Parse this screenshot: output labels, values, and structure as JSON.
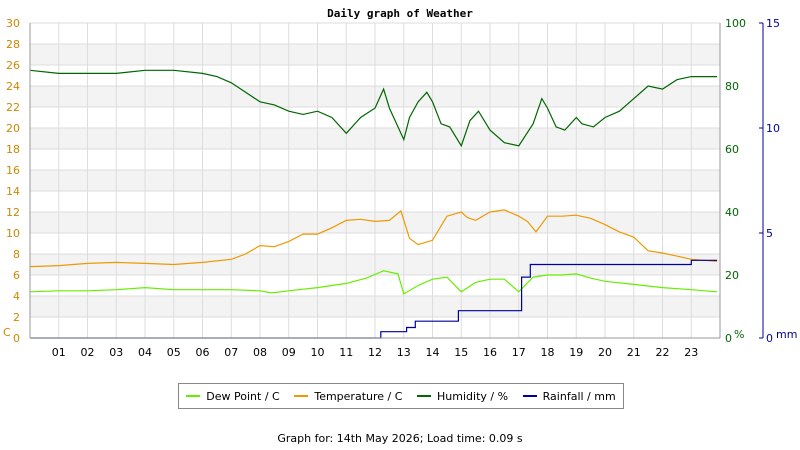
{
  "chart_data": {
    "type": "line",
    "title": "Daily graph of Weather",
    "x_tick_labels": [
      "01",
      "02",
      "03",
      "04",
      "05",
      "06",
      "07",
      "08",
      "09",
      "10",
      "11",
      "12",
      "13",
      "14",
      "15",
      "16",
      "17",
      "18",
      "19",
      "20",
      "21",
      "22",
      "23"
    ],
    "x_range": [
      0,
      24
    ],
    "left_axis": {
      "unit": "C",
      "range": [
        0,
        30
      ],
      "ticks": [
        0,
        2,
        4,
        6,
        8,
        10,
        12,
        14,
        16,
        18,
        20,
        22,
        24,
        26,
        28,
        30
      ]
    },
    "humidity_axis": {
      "unit": "%",
      "range": [
        0,
        100
      ],
      "ticks": [
        0,
        20,
        40,
        60,
        80,
        100
      ]
    },
    "rain_axis": {
      "unit": "mm",
      "range": [
        0,
        15
      ],
      "ticks": [
        0,
        5,
        10,
        15
      ]
    },
    "grid": true,
    "legend_placement": "bottom",
    "series": [
      {
        "name": "Dew Point / C",
        "axis": "left",
        "color": "#66ee00",
        "points": [
          [
            0,
            4.4
          ],
          [
            1,
            4.5
          ],
          [
            2,
            4.5
          ],
          [
            3,
            4.6
          ],
          [
            4,
            4.8
          ],
          [
            5,
            4.6
          ],
          [
            6,
            4.6
          ],
          [
            7,
            4.6
          ],
          [
            8,
            4.5
          ],
          [
            8.4,
            4.3
          ],
          [
            9,
            4.5
          ],
          [
            10,
            4.8
          ],
          [
            11,
            5.2
          ],
          [
            11.7,
            5.7
          ],
          [
            12.3,
            6.4
          ],
          [
            12.8,
            6.1
          ],
          [
            13,
            4.2
          ],
          [
            13.5,
            5.0
          ],
          [
            14,
            5.6
          ],
          [
            14.5,
            5.8
          ],
          [
            15,
            4.4
          ],
          [
            15.5,
            5.3
          ],
          [
            16,
            5.6
          ],
          [
            16.5,
            5.6
          ],
          [
            17,
            4.4
          ],
          [
            17.5,
            5.8
          ],
          [
            18,
            6.0
          ],
          [
            18.5,
            6.0
          ],
          [
            19,
            6.1
          ],
          [
            19.5,
            5.7
          ],
          [
            20,
            5.4
          ],
          [
            21,
            5.1
          ],
          [
            22,
            4.8
          ],
          [
            23,
            4.6
          ],
          [
            23.9,
            4.4
          ]
        ]
      },
      {
        "name": "Temperature / C",
        "axis": "left",
        "color": "#ee9900",
        "points": [
          [
            0,
            6.8
          ],
          [
            1,
            6.9
          ],
          [
            2,
            7.1
          ],
          [
            3,
            7.2
          ],
          [
            4,
            7.1
          ],
          [
            5,
            7.0
          ],
          [
            6,
            7.2
          ],
          [
            7,
            7.5
          ],
          [
            7.5,
            8.0
          ],
          [
            8,
            8.8
          ],
          [
            8.5,
            8.7
          ],
          [
            9,
            9.2
          ],
          [
            9.5,
            9.9
          ],
          [
            10,
            9.9
          ],
          [
            10.5,
            10.5
          ],
          [
            11,
            11.2
          ],
          [
            11.5,
            11.3
          ],
          [
            12,
            11.1
          ],
          [
            12.5,
            11.2
          ],
          [
            12.9,
            12.1
          ],
          [
            13.2,
            9.5
          ],
          [
            13.5,
            8.9
          ],
          [
            14,
            9.3
          ],
          [
            14.5,
            11.6
          ],
          [
            15,
            12.0
          ],
          [
            15.2,
            11.5
          ],
          [
            15.5,
            11.2
          ],
          [
            16,
            12.0
          ],
          [
            16.5,
            12.2
          ],
          [
            17,
            11.6
          ],
          [
            17.3,
            11.1
          ],
          [
            17.6,
            10.1
          ],
          [
            18,
            11.6
          ],
          [
            18.5,
            11.6
          ],
          [
            19,
            11.7
          ],
          [
            19.5,
            11.4
          ],
          [
            20,
            10.8
          ],
          [
            20.5,
            10.1
          ],
          [
            21,
            9.6
          ],
          [
            21.5,
            8.3
          ],
          [
            22,
            8.1
          ],
          [
            22.5,
            7.8
          ],
          [
            23,
            7.5
          ],
          [
            23.9,
            7.3
          ]
        ]
      },
      {
        "name": "Humidity / %",
        "axis": "humidity",
        "color": "#006600",
        "points": [
          [
            0,
            85
          ],
          [
            1,
            84
          ],
          [
            2,
            84
          ],
          [
            3,
            84
          ],
          [
            4,
            85
          ],
          [
            5,
            85
          ],
          [
            6,
            84
          ],
          [
            6.5,
            83
          ],
          [
            7,
            81
          ],
          [
            7.5,
            78
          ],
          [
            8,
            75
          ],
          [
            8.5,
            74
          ],
          [
            9,
            72
          ],
          [
            9.5,
            71
          ],
          [
            10,
            72
          ],
          [
            10.5,
            70
          ],
          [
            11,
            65
          ],
          [
            11.5,
            70
          ],
          [
            12,
            73
          ],
          [
            12.3,
            79
          ],
          [
            12.5,
            73
          ],
          [
            12.8,
            67
          ],
          [
            13,
            63
          ],
          [
            13.2,
            70
          ],
          [
            13.5,
            75
          ],
          [
            13.8,
            78
          ],
          [
            14,
            75
          ],
          [
            14.3,
            68
          ],
          [
            14.6,
            67
          ],
          [
            15,
            61
          ],
          [
            15.3,
            69
          ],
          [
            15.6,
            72
          ],
          [
            16,
            66
          ],
          [
            16.5,
            62
          ],
          [
            17,
            61
          ],
          [
            17.5,
            68
          ],
          [
            17.8,
            76
          ],
          [
            18,
            73
          ],
          [
            18.3,
            67
          ],
          [
            18.6,
            66
          ],
          [
            19,
            70
          ],
          [
            19.2,
            68
          ],
          [
            19.6,
            67
          ],
          [
            20,
            70
          ],
          [
            20.5,
            72
          ],
          [
            21,
            76
          ],
          [
            21.5,
            80
          ],
          [
            22,
            79
          ],
          [
            22.5,
            82
          ],
          [
            23,
            83
          ],
          [
            23.9,
            83
          ]
        ]
      },
      {
        "name": "Rainfall / mm",
        "axis": "rain",
        "color": "#000099",
        "points": [
          [
            0,
            0
          ],
          [
            12.2,
            0
          ],
          [
            12.2,
            0.3
          ],
          [
            13.1,
            0.3
          ],
          [
            13.1,
            0.5
          ],
          [
            13.4,
            0.5
          ],
          [
            13.4,
            0.8
          ],
          [
            14.9,
            0.8
          ],
          [
            14.9,
            1.3
          ],
          [
            17.1,
            1.3
          ],
          [
            17.1,
            2.9
          ],
          [
            17.4,
            2.9
          ],
          [
            17.4,
            3.5
          ],
          [
            23.0,
            3.5
          ],
          [
            23.0,
            3.7
          ],
          [
            23.9,
            3.7
          ]
        ]
      }
    ]
  },
  "footer": {
    "text": "Graph for: 14th May 2026; Load time: 0.09 s"
  }
}
